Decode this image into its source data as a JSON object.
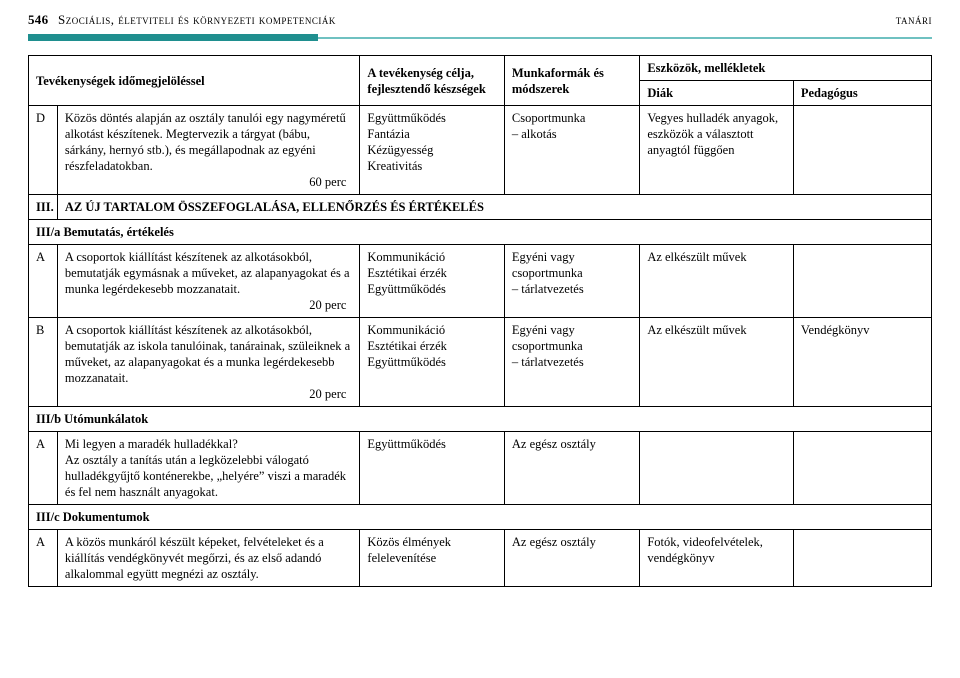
{
  "header": {
    "page_number": "546",
    "title_left": "Szociális, életviteli és környezeti kompetenciák",
    "title_right": "tanári"
  },
  "table": {
    "head": {
      "c1": "Tevékenységek   időmegjelöléssel",
      "c2": "A tevékenység célja, fejlesztendő készségek",
      "c3": "Munkaformák és módszerek",
      "merged_top": "Eszközök, mellékletek",
      "c4": "Diák",
      "c5": "Pedagógus"
    },
    "rows": {
      "d": {
        "label": "D",
        "activity": "Közös döntés alapján az osztály tanulói egy nagyméretű alkotást készítenek. Megtervezik a tárgyat (bábu, sárkány, hernyó stb.), és megállapodnak az egyéni részfeladatokban.",
        "duration": "60 perc",
        "c2": "Együttműködés\nFantázia\nKézügyesség\nKreativitás",
        "c3": "Csoportmunka\n– alkotás",
        "c4": "Vegyes hulladék anyagok, eszközök a választott anyagtól függően"
      },
      "sec3": {
        "label": "III.",
        "text": "AZ ÚJ TARTALOM ÖSSZEFOGLALÁSA, ELLENŐRZÉS ÉS ÉRTÉKELÉS"
      },
      "sec3a": {
        "text": "III/a Bemutatás, értékelés"
      },
      "a1": {
        "label": "A",
        "activity": "A csoportok kiállítást készítenek az alkotásokból, bemutatják egymásnak a műveket, az alapanyagokat és a munka legérdekesebb mozzanatait.",
        "duration": "20 perc",
        "c2": "Kommunikáció\nEsztétikai érzék\nEgyüttműködés",
        "c3": "Egyéni vagy csoportmunka\n– tárlatvezetés",
        "c4": "Az elkészült művek"
      },
      "b1": {
        "label": "B",
        "activity": "A csoportok kiállítást készítenek az alkotásokból, bemutatják az iskola tanulóinak, tanárainak, szüleiknek a műveket, az alapanyagokat és a munka legérdekesebb mozzanatait.",
        "duration": "20 perc",
        "c2": "Kommunikáció\nEsztétikai érzék\nEgyüttműködés",
        "c3": "Egyéni vagy csoportmunka\n– tárlatvezetés",
        "c4": "Az elkészült művek",
        "c5": "Vendégkönyv"
      },
      "sec3b": {
        "text": "III/b Utómunkálatok"
      },
      "a2": {
        "label": "A",
        "activity": "Mi legyen a maradék hulladékkal?\nAz osztály a tanítás után a legközelebbi válogató hulladékgyűjtő konténerekbe, „helyére” viszi a maradék és fel nem használt anyagokat.",
        "c2": "Együttműködés",
        "c3": "Az egész osztály"
      },
      "sec3c": {
        "text": "III/c Dokumentumok"
      },
      "a3": {
        "label": "A",
        "activity": "A közös munkáról készült képeket, felvételeket és a kiállítás vendégkönyvét megőrzi, és az első adandó alkalommal együtt megnézi az osztály.",
        "c2": "Közös élmények felelevenítése",
        "c3": "Az egész osztály",
        "c4": "Fotók, videofelvételek, vendégkönyv"
      }
    }
  }
}
